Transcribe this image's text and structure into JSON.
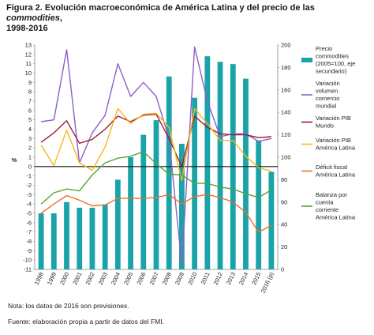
{
  "title_main": "Figura 2. Evolución macroeconómica de América Latina y del precio de las ",
  "title_italic": "commodities",
  "title_tail": ",",
  "title_line2": "1998-2016",
  "note": "Nota: los datos de 2016 son previsiones.",
  "source": "Fuente: elaboración propia a partir de datos del FMI.",
  "chart_data": {
    "type": "bar+line",
    "categories": [
      "1998",
      "1999",
      "2000",
      "2001",
      "2002",
      "2003",
      "2004",
      "2005",
      "2006",
      "2007",
      "2008",
      "2009",
      "2010",
      "2011",
      "2012",
      "2013",
      "2014",
      "2015",
      "2016 (p)"
    ],
    "ylabel": "%",
    "ylim": [
      -11,
      13
    ],
    "y2lim": [
      0,
      200
    ],
    "bars": {
      "name": "Precio commodities (2005=100, eje secundario)",
      "axis": "secondary",
      "color": "#1aa3a8",
      "values": [
        50,
        50,
        60,
        55,
        55,
        58,
        80,
        100,
        120,
        133,
        172,
        112,
        153,
        190,
        185,
        183,
        170,
        115,
        87
      ]
    },
    "series": [
      {
        "name": "Variación volumen comercio mundial",
        "color": "#8d5fc7",
        "values": [
          4.8,
          5.0,
          12.5,
          0.4,
          3.6,
          5.5,
          11.0,
          7.5,
          9.0,
          7.5,
          3.0,
          -10.5,
          12.8,
          7.0,
          3.2,
          3.5,
          3.5,
          2.7,
          3.0
        ]
      },
      {
        "name": "Variación PIB Mundo",
        "color": "#9e1b34",
        "values": [
          2.6,
          3.6,
          4.9,
          2.5,
          2.9,
          4.0,
          5.4,
          4.8,
          5.5,
          5.6,
          3.0,
          0.0,
          5.4,
          4.2,
          3.5,
          3.4,
          3.4,
          3.1,
          3.2
        ]
      },
      {
        "name": "Variación PIB América Latina",
        "color": "#f5b81c",
        "values": [
          2.3,
          0.1,
          3.9,
          0.4,
          -0.4,
          2.1,
          6.2,
          4.6,
          5.6,
          5.7,
          4.2,
          -1.5,
          6.2,
          4.6,
          2.8,
          2.8,
          1.1,
          -0.1,
          -0.5
        ]
      },
      {
        "name": "Déficit fiscal América Latina",
        "color": "#ef6f2a",
        "values": [
          -5.0,
          -4.0,
          -3.1,
          -3.6,
          -4.2,
          -4.1,
          -3.4,
          -3.4,
          -3.4,
          -3.3,
          -3.0,
          -4.0,
          -3.2,
          -3.0,
          -3.3,
          -3.8,
          -4.9,
          -7.0,
          -6.3
        ]
      },
      {
        "name": "Balanza por cuenta corriente América Latina",
        "color": "#5aa23a",
        "values": [
          -4.0,
          -2.8,
          -2.4,
          -2.6,
          -0.9,
          0.4,
          0.9,
          1.1,
          1.6,
          0.3,
          -0.8,
          -0.9,
          -1.8,
          -1.8,
          -2.2,
          -2.4,
          -2.9,
          -3.3,
          -2.5
        ]
      }
    ],
    "legend": {
      "position": "right",
      "items": [
        {
          "lines": [
            "Precio",
            "commodities",
            "(2005=100, eje",
            "secundario)"
          ],
          "kind": "bar",
          "color": "#1aa3a8"
        },
        {
          "lines": [
            "Variación",
            "volumen",
            "comercio",
            "mundial"
          ],
          "kind": "line",
          "color": "#8d5fc7"
        },
        {
          "lines": [
            "Variación PIB",
            "Mundo"
          ],
          "kind": "line",
          "color": "#9e1b34"
        },
        {
          "lines": [
            "Variación PIB",
            "América Latina"
          ],
          "kind": "line",
          "color": "#f5b81c"
        },
        {
          "lines": [
            "Déficit fiscal",
            "América Latina"
          ],
          "kind": "line",
          "color": "#ef6f2a"
        },
        {
          "lines": [
            "Balanza por",
            "cuenta",
            "corriente",
            "América Latina"
          ],
          "kind": "line",
          "color": "#5aa23a"
        }
      ]
    }
  }
}
